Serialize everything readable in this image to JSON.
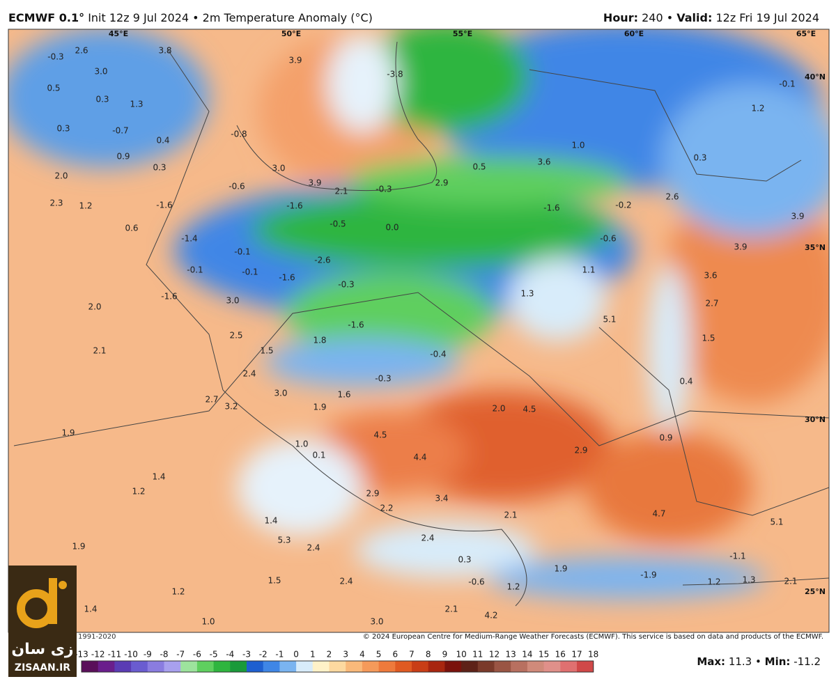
{
  "header": {
    "model": "ECMWF 0.1°",
    "subtitle": "Init 12z 9 Jul 2024 • 2m Temperature Anomaly (°C)",
    "hour_label": "Hour:",
    "hour_value": "240 •",
    "valid_label": "Valid:",
    "valid_value": "12z Fri 19 Jul 2024"
  },
  "longitudes": [
    "45°E",
    "50°E",
    "55°E",
    "60°E",
    "65°E"
  ],
  "latitudes": [
    "40°N",
    "35°N",
    "30°N",
    "25°N"
  ],
  "map_labels": [
    "-0.3",
    "2.6",
    "3.8",
    "3.9",
    "-3.8",
    "-0.1",
    "0.5",
    "3.0",
    "0.3",
    "1.3",
    "1.2",
    "0.3",
    "-0.7",
    "0.4",
    "-0.8",
    "1.0",
    "0.9",
    "0.3",
    "3.0",
    "0.5",
    "3.6",
    "0.3",
    "2.0",
    "-0.6",
    "3.9",
    "2.1",
    "-0.3",
    "2.9",
    "2.6",
    "2.3",
    "1.2",
    "-1.6",
    "-1.6",
    "-1.6",
    "-0.2",
    "3.9",
    "0.6",
    "-0.5",
    "0.0",
    "-1.4",
    "-0.6",
    "3.9",
    "-0.1",
    "-2.6",
    "-0.1",
    "-0.1",
    "-1.6",
    "1.1",
    "3.6",
    "-0.3",
    "1.3",
    "-1.6",
    "3.0",
    "2.0",
    "2.7",
    "5.1",
    "-1.6",
    "2.5",
    "1.8",
    "1.5",
    "1.5",
    "-0.4",
    "2.1",
    "2.4",
    "-0.3",
    "0.4",
    "1.6",
    "3.0",
    "2.7",
    "3.2",
    "1.9",
    "2.0",
    "4.5",
    "1.9",
    "4.5",
    "0.9",
    "1.0",
    "2.9",
    "0.1",
    "4.4",
    "1.4",
    "1.2",
    "2.9",
    "3.4",
    "2.2",
    "2.1",
    "4.7",
    "5.1",
    "1.4",
    "5.3",
    "2.4",
    "1.9",
    "2.4",
    "-1.1",
    "0.3",
    "1.9",
    "-1.9",
    "1.5",
    "2.4",
    "-0.6",
    "1.2",
    "1.2",
    "1.3",
    "2.1",
    "1.2",
    "1.4",
    "2.1",
    "1.0",
    "3.0",
    "4.2"
  ],
  "footer": {
    "period": "1991-2020",
    "copyright": "© 2024 European Centre for Medium-Range Weather Forecasts (ECMWF). This service is based on data and products of the ECMWF.",
    "max_label": "Max:",
    "max_value": 11.3,
    "separator": "•",
    "min_label": "Min:",
    "min_value": -11.2
  },
  "colorbar": {
    "ticks": [
      -13,
      -12,
      -11,
      -10,
      -9,
      -8,
      -7,
      -6,
      -5,
      -4,
      -3,
      -2,
      -1,
      0,
      1,
      2,
      3,
      4,
      5,
      6,
      7,
      8,
      9,
      10,
      11,
      12,
      13,
      14,
      15,
      16,
      17,
      18
    ],
    "colors": [
      "#5a0f5a",
      "#6a1e8c",
      "#5a3cb4",
      "#6a5cd0",
      "#8a7ce0",
      "#a8a0ee",
      "#9de39d",
      "#5fcf5f",
      "#2fb53f",
      "#1a9a3a",
      "#1e5fd0",
      "#3f86e6",
      "#7ab4f0",
      "#d8ecfa",
      "#fff2c8",
      "#fdd9a0",
      "#f9b97a",
      "#f59a5a",
      "#ee7a3c",
      "#e05a22",
      "#c93e16",
      "#a8260f",
      "#7a120c",
      "#5e2218",
      "#7a3a2a",
      "#9a5544",
      "#b87060",
      "#d08a7a",
      "#e0908a",
      "#e07070",
      "#d04848"
    ]
  },
  "logo": {
    "text_fa": "زی سان",
    "text_en": "ZISAAN.IR"
  }
}
